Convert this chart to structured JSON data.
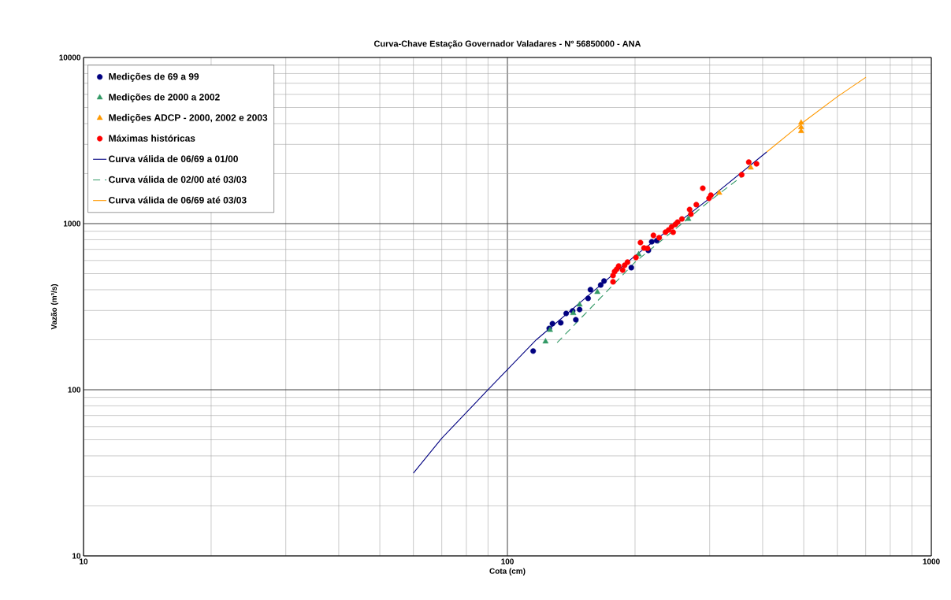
{
  "chart_data": {
    "type": "scatter",
    "title": "Curva-Chave Estação Governador Valadares - Nº 56850000 - ANA",
    "xlabel": "Cota (cm)",
    "ylabel": "Vazão (m³/s)",
    "log": "xy",
    "grid": true,
    "legend": "top left",
    "xlim": [
      10,
      1000
    ],
    "ylim": [
      10,
      10000
    ],
    "xticks": [
      10,
      100,
      1000
    ],
    "yticks": [
      10,
      100,
      1000,
      10000
    ],
    "series": [
      {
        "name": "Medições de 69 a 99",
        "marker": "circle",
        "color": "#000080",
        "x": [
          115,
          125.5,
          127.7,
          133.6,
          137.6,
          142.5,
          145,
          148,
          155,
          157,
          166,
          169,
          196,
          215,
          219,
          225
        ],
        "values": [
          171,
          234,
          250,
          253,
          288,
          298,
          264,
          304,
          355,
          400,
          427,
          451,
          543,
          690,
          778,
          790
        ]
      },
      {
        "name": "Medições de 2000 a 2002",
        "marker": "triangle",
        "color": "#339966",
        "x": [
          123,
          126,
          143,
          148,
          163,
          204,
          267
        ],
        "values": [
          195,
          229,
          289,
          325,
          387,
          653,
          1067
        ]
      },
      {
        "name": "Medições ADCP - 2000, 2002 e 2003",
        "marker": "triangle",
        "color": "#ff9900",
        "x": [
          316,
          375,
          493,
          493,
          493
        ],
        "values": [
          1531,
          2170,
          3600,
          3800,
          4050
        ]
      },
      {
        "name": "Máximas históricas",
        "marker": "circle",
        "color": "#ff0000",
        "x": [
          206,
          210,
          201,
          192,
          189,
          183,
          181,
          179,
          177.5,
          177.5,
          187,
          228,
          214,
          221,
          236,
          240,
          244,
          246,
          249,
          252,
          258,
          269,
          271,
          279,
          289,
          299,
          302,
          357,
          371,
          387
        ],
        "values": [
          769,
          713,
          625,
          586,
          561,
          555,
          531,
          514,
          487,
          446,
          525,
          822,
          710,
          849,
          888,
          916,
          957,
          888,
          989,
          1021,
          1067,
          1216,
          1140,
          1300,
          1633,
          1420,
          1483,
          1968,
          2345,
          2290
        ]
      },
      {
        "name": "Curva válida de 06/69 a 01/00",
        "type": "line",
        "marker": "none",
        "line_style": "solid",
        "color": "#000080",
        "x": [
          60,
          70,
          90,
          117,
          200,
          300,
          409
        ],
        "values": [
          31.5,
          51,
          100,
          200,
          640,
          1420,
          2700
        ]
      },
      {
        "name": "Curva válida de 02/00 até 03/03",
        "type": "line",
        "marker": "none",
        "line_style": "dashed",
        "color": "#339966",
        "x": [
          131,
          200,
          300,
          360
        ],
        "values": [
          192,
          586,
          1370,
          1950
        ]
      },
      {
        "name": "Curva válida de 06/69 até 03/03",
        "type": "line",
        "marker": "none",
        "line_style": "solid",
        "color": "#ff9900",
        "x": [
          409,
          500,
          600,
          701
        ],
        "values": [
          2700,
          4100,
          5800,
          7600
        ]
      }
    ]
  }
}
